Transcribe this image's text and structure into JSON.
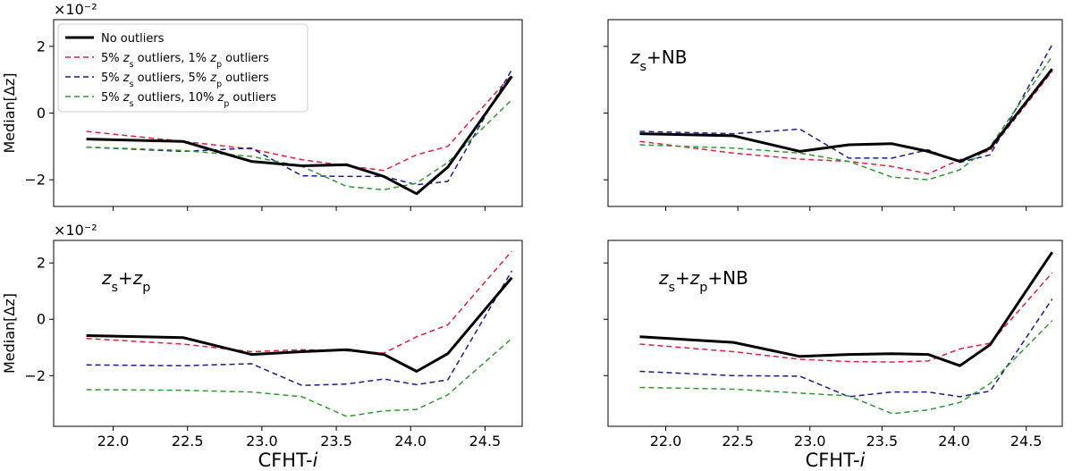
{
  "chart_data": {
    "type": "line",
    "x_tick_labels": [
      "22.0",
      "22.5",
      "23.0",
      "23.5",
      "24.0",
      "24.5"
    ],
    "x_ticks": [
      22.0,
      22.5,
      23.0,
      23.5,
      24.0,
      24.5
    ],
    "xlim": [
      21.6,
      24.75
    ],
    "xlabel": "CFHT-i",
    "ylabel": "Median[Δz]",
    "y_exponent_label": "×10⁻²",
    "y_tick_labels": [
      "2",
      "0",
      "−2"
    ],
    "y_ticks": [
      2,
      0,
      -2
    ],
    "x": [
      21.82,
      22.47,
      22.93,
      23.27,
      23.57,
      23.82,
      24.04,
      24.25,
      24.68
    ],
    "series_meta": [
      {
        "name": "No outliers",
        "color": "#000000",
        "dash": "solid",
        "width": 3
      },
      {
        "name": "5% zs outliers, 1% zp outliers",
        "color": "#e0203c",
        "dash": "dashed",
        "width": 1.5
      },
      {
        "name": "5% zs outliers, 5% zp outliers",
        "color": "#1a1a8c",
        "dash": "dashed",
        "width": 1.5
      },
      {
        "name": "5% zs outliers, 10% zp outliers",
        "color": "#2e9a2e",
        "dash": "dashed",
        "width": 1.5
      }
    ],
    "legend": [
      {
        "prefix": "No outliers",
        "rows": []
      },
      {
        "prefix": "5% ",
        "a": "z",
        "asub": "s",
        "mid": " outliers, 1% ",
        "b": "z",
        "bsub": "p",
        "suffix": "  outliers"
      },
      {
        "prefix": "5% ",
        "a": "z",
        "asub": "s",
        "mid": " outliers, 5% ",
        "b": "z",
        "bsub": "p",
        "suffix": "  outliers"
      },
      {
        "prefix": "5% ",
        "a": "z",
        "asub": "s",
        "mid": " outliers, 10% ",
        "b": "z",
        "bsub": "p",
        "suffix": "  outliers"
      }
    ],
    "panels": [
      {
        "id": "top-left",
        "label": "zs",
        "label_parts": {
          "z1": "z",
          "s1": "s",
          "plus1": "",
          "z2": "",
          "s2": "",
          "nb": ""
        },
        "ylim": [
          -2.8,
          2.8
        ],
        "show_exponent": true,
        "show_ylabel": true,
        "show_xticklabels": false,
        "show_yticklabels": true,
        "show_legend": true,
        "series": [
          [
            -0.78,
            -0.85,
            -1.45,
            -1.58,
            -1.55,
            -1.9,
            -2.42,
            -1.62,
            1.1
          ],
          [
            -0.55,
            -0.85,
            -1.08,
            -1.4,
            -1.58,
            -1.72,
            -1.25,
            -1.0,
            1.15
          ],
          [
            -1.02,
            -1.15,
            -1.05,
            -1.88,
            -1.9,
            -1.9,
            -2.15,
            -2.05,
            1.3
          ],
          [
            -1.02,
            -1.12,
            -1.3,
            -1.6,
            -2.2,
            -2.3,
            -2.1,
            -1.48,
            0.4
          ]
        ]
      },
      {
        "id": "top-right",
        "label": "zs+NB",
        "label_parts": {
          "z1": "z",
          "s1": "s",
          "plus1": "+NB",
          "z2": "",
          "s2": "",
          "nb": ""
        },
        "ylim": [
          -2.8,
          2.8
        ],
        "show_exponent": false,
        "show_ylabel": false,
        "show_xticklabels": false,
        "show_yticklabels": false,
        "show_legend": false,
        "series": [
          [
            -0.62,
            -0.68,
            -1.15,
            -0.95,
            -0.92,
            -1.15,
            -1.45,
            -1.05,
            1.32
          ],
          [
            -0.85,
            -1.2,
            -1.38,
            -1.45,
            -1.6,
            -1.82,
            -1.4,
            -1.12,
            1.25
          ],
          [
            -0.55,
            -0.62,
            -0.48,
            -1.35,
            -1.35,
            -1.1,
            -1.48,
            -1.25,
            2.05
          ],
          [
            -0.95,
            -1.05,
            -1.2,
            -1.45,
            -1.92,
            -2.0,
            -1.7,
            -1.0,
            1.7
          ]
        ]
      },
      {
        "id": "bottom-left",
        "label": "zs+zp",
        "label_parts": {
          "z1": "z",
          "s1": "s",
          "plus1": "+",
          "z2": "z",
          "s2": "p",
          "nb": ""
        },
        "ylim": [
          -3.8,
          2.8
        ],
        "show_exponent": true,
        "show_ylabel": true,
        "show_xticklabels": true,
        "show_yticklabels": true,
        "show_legend": false,
        "series": [
          [
            -0.58,
            -0.65,
            -1.25,
            -1.15,
            -1.08,
            -1.25,
            -1.85,
            -1.22,
            1.48
          ],
          [
            -0.68,
            -0.88,
            -1.15,
            -1.08,
            -1.12,
            -1.2,
            -0.62,
            -0.2,
            2.42
          ],
          [
            -1.62,
            -1.65,
            -1.58,
            -2.35,
            -2.3,
            -2.12,
            -2.32,
            -2.15,
            1.72
          ],
          [
            -2.5,
            -2.52,
            -2.58,
            -2.75,
            -3.45,
            -3.25,
            -3.2,
            -2.68,
            -0.68
          ]
        ]
      },
      {
        "id": "bottom-right",
        "label": "zs+zp+NB",
        "label_parts": {
          "z1": "z",
          "s1": "s",
          "plus1": "+",
          "z2": "z",
          "s2": "p",
          "nb": "+NB"
        },
        "ylim": [
          -3.8,
          2.8
        ],
        "show_exponent": false,
        "show_ylabel": false,
        "show_xticklabels": true,
        "show_yticklabels": false,
        "show_legend": false,
        "series": [
          [
            -0.62,
            -0.82,
            -1.32,
            -1.25,
            -1.22,
            -1.25,
            -1.65,
            -0.9,
            2.38
          ],
          [
            -0.88,
            -1.15,
            -1.42,
            -1.5,
            -1.52,
            -1.48,
            -1.05,
            -0.85,
            1.65
          ],
          [
            -1.85,
            -2.0,
            -2.02,
            -2.75,
            -2.58,
            -2.58,
            -2.75,
            -2.55,
            0.72
          ],
          [
            -2.42,
            -2.48,
            -2.62,
            -2.72,
            -3.35,
            -3.22,
            -2.95,
            -2.28,
            -0.05
          ]
        ]
      }
    ]
  }
}
